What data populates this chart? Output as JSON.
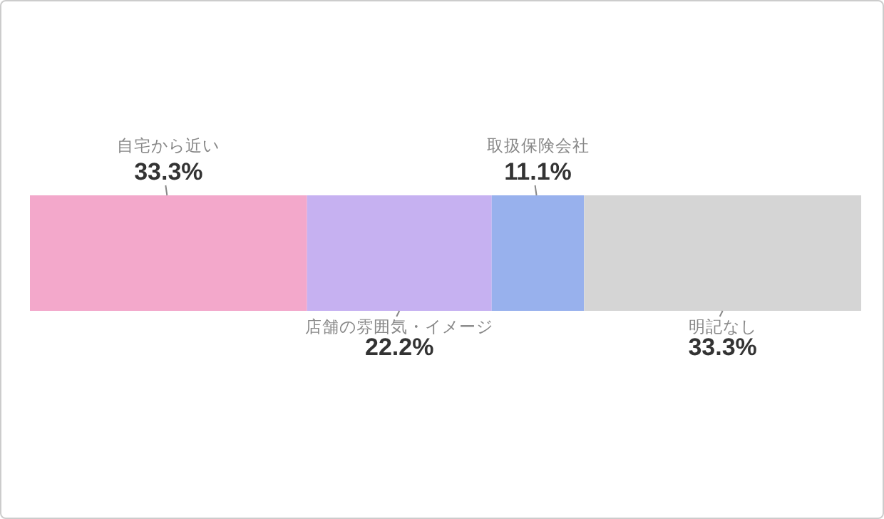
{
  "chart_data": {
    "type": "bar",
    "orientation": "horizontal",
    "stacked": true,
    "categories": [
      null
    ],
    "series": [
      {
        "name": "自宅から近い",
        "color": "#f3a8cb",
        "values": [
          33.3
        ],
        "value_labels": [
          "33.3%"
        ]
      },
      {
        "name": "店舗の雰囲気・イメージ",
        "color": "#c6b1f1",
        "values": [
          22.2
        ],
        "value_labels": [
          "22.2%"
        ]
      },
      {
        "name": "取扱保険会社",
        "color": "#98b1ed",
        "values": [
          11.1
        ],
        "value_labels": [
          "11.1%"
        ]
      },
      {
        "name": "明記なし",
        "color": "#d5d5d5",
        "values": [
          33.3
        ],
        "value_labels": [
          "33.3%"
        ]
      }
    ]
  }
}
